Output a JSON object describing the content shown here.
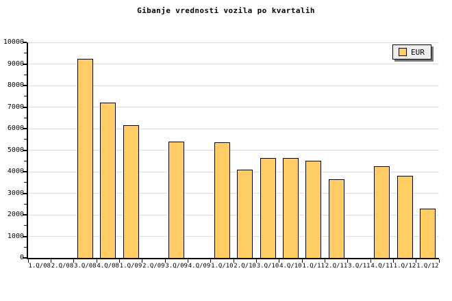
{
  "page": {
    "background": "#FFFFFF"
  },
  "chart": {
    "title": "Gibanje vrednosti vozila po kvartalih",
    "legend": {
      "label": "EUR"
    }
  },
  "chart_data": {
    "type": "bar",
    "title": "Gibanje vrednosti vozila po kvartalih",
    "categories": [
      "1.Q/08",
      "2.Q/08",
      "3.Q/08",
      "4.Q/08",
      "1.Q/09",
      "2.Q/09",
      "3.Q/09",
      "4.Q/09",
      "1.Q/10",
      "2.Q/10",
      "3.Q/10",
      "4.Q/10",
      "1.Q/11",
      "2.Q/11",
      "3.Q/11",
      "4.Q/11",
      "1.Q/12",
      "1.Q/12"
    ],
    "series": [
      {
        "name": "EUR",
        "values": [
          0,
          0,
          9250,
          7200,
          6150,
          0,
          5400,
          0,
          5350,
          4100,
          4650,
          4650,
          4500,
          3650,
          0,
          4250,
          3800,
          2300
        ]
      }
    ],
    "xlabel": "",
    "ylabel": "",
    "ylim": [
      0,
      10000
    ],
    "y_ticks": [
      0,
      1000,
      2000,
      3000,
      4000,
      5000,
      6000,
      7000,
      8000,
      9000,
      10000
    ],
    "y_minor_step": 500,
    "grid": "horizontal-major-on",
    "legend_position": "top-right",
    "colors": {
      "bar_fill": "#FFCC66",
      "bar_border": "#000000",
      "grid": "#DDDDDD",
      "axis": "#000000",
      "legend_bg": "#EEEEEE",
      "legend_shadow": "#777777",
      "text": "#000000"
    }
  }
}
